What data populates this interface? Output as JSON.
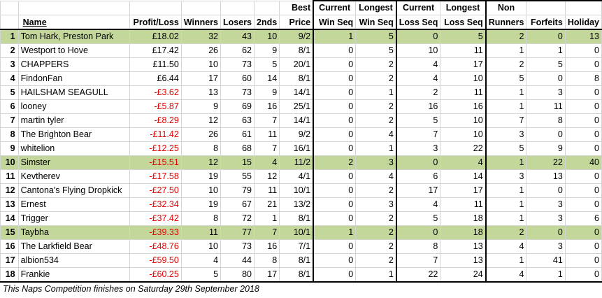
{
  "headers": {
    "name": "Name",
    "profit_loss": "Profit/Loss",
    "winners": "Winners",
    "losers": "Losers",
    "seconds": "2nds",
    "best_price": [
      "Best",
      "Price"
    ],
    "current_win_seq": [
      "Current",
      "Win Seq"
    ],
    "longest_win_seq": [
      "Longest",
      "Win Seq"
    ],
    "current_loss_seq": [
      "Current",
      "Loss Seq"
    ],
    "longest_loss_seq": [
      "Longest",
      "Loss Seq"
    ],
    "non_runners": [
      "Non",
      "Runners"
    ],
    "forfeits": "Forfeits",
    "holiday": "Holiday"
  },
  "rows": [
    {
      "pos": "1",
      "name": "Tom Hark, Preston Park",
      "pl": "£18.02",
      "neg": false,
      "winners": "32",
      "losers": "43",
      "seconds": "10",
      "best": "9/2",
      "cws": "1",
      "lws": "5",
      "cls": "0",
      "lls": "5",
      "nr": "2",
      "forfeits": "0",
      "holiday": "13",
      "highlight": true
    },
    {
      "pos": "2",
      "name": "Westport to Hove",
      "pl": "£17.42",
      "neg": false,
      "winners": "26",
      "losers": "62",
      "seconds": "9",
      "best": "8/1",
      "cws": "0",
      "lws": "5",
      "cls": "10",
      "lls": "11",
      "nr": "1",
      "forfeits": "1",
      "holiday": "0",
      "highlight": false
    },
    {
      "pos": "3",
      "name": "CHAPPERS",
      "pl": "£11.50",
      "neg": false,
      "winners": "10",
      "losers": "73",
      "seconds": "5",
      "best": "20/1",
      "cws": "0",
      "lws": "2",
      "cls": "4",
      "lls": "17",
      "nr": "2",
      "forfeits": "5",
      "holiday": "0",
      "highlight": false
    },
    {
      "pos": "4",
      "name": "FindonFan",
      "pl": "£6.44",
      "neg": false,
      "winners": "17",
      "losers": "60",
      "seconds": "14",
      "best": "8/1",
      "cws": "0",
      "lws": "2",
      "cls": "4",
      "lls": "10",
      "nr": "5",
      "forfeits": "0",
      "holiday": "8",
      "highlight": false
    },
    {
      "pos": "5",
      "name": "HAILSHAM SEAGULL",
      "pl": "-£3.62",
      "neg": true,
      "winners": "13",
      "losers": "73",
      "seconds": "9",
      "best": "14/1",
      "cws": "0",
      "lws": "1",
      "cls": "2",
      "lls": "11",
      "nr": "1",
      "forfeits": "3",
      "holiday": "0",
      "highlight": false
    },
    {
      "pos": "6",
      "name": "looney",
      "pl": "-£5.87",
      "neg": true,
      "winners": "9",
      "losers": "69",
      "seconds": "16",
      "best": "25/1",
      "cws": "0",
      "lws": "2",
      "cls": "16",
      "lls": "16",
      "nr": "1",
      "forfeits": "11",
      "holiday": "0",
      "highlight": false
    },
    {
      "pos": "7",
      "name": "martin tyler",
      "pl": "-£8.29",
      "neg": true,
      "winners": "12",
      "losers": "63",
      "seconds": "7",
      "best": "14/1",
      "cws": "0",
      "lws": "2",
      "cls": "5",
      "lls": "10",
      "nr": "7",
      "forfeits": "8",
      "holiday": "0",
      "highlight": false
    },
    {
      "pos": "8",
      "name": "The Brighton Bear",
      "pl": "-£11.42",
      "neg": true,
      "winners": "26",
      "losers": "61",
      "seconds": "11",
      "best": "9/2",
      "cws": "0",
      "lws": "4",
      "cls": "7",
      "lls": "10",
      "nr": "3",
      "forfeits": "0",
      "holiday": "0",
      "highlight": false
    },
    {
      "pos": "9",
      "name": "whitelion",
      "pl": "-£12.25",
      "neg": true,
      "winners": "8",
      "losers": "68",
      "seconds": "7",
      "best": "16/1",
      "cws": "0",
      "lws": "1",
      "cls": "3",
      "lls": "22",
      "nr": "5",
      "forfeits": "9",
      "holiday": "0",
      "highlight": false
    },
    {
      "pos": "10",
      "name": "Simster",
      "pl": "-£15.51",
      "neg": true,
      "winners": "12",
      "losers": "15",
      "seconds": "4",
      "best": "11/2",
      "cws": "2",
      "lws": "3",
      "cls": "0",
      "lls": "4",
      "nr": "1",
      "forfeits": "22",
      "holiday": "40",
      "highlight": true
    },
    {
      "pos": "11",
      "name": "Kevtherev",
      "pl": "-£17.58",
      "neg": true,
      "winners": "19",
      "losers": "55",
      "seconds": "12",
      "best": "4/1",
      "cws": "0",
      "lws": "4",
      "cls": "6",
      "lls": "14",
      "nr": "3",
      "forfeits": "13",
      "holiday": "0",
      "highlight": false
    },
    {
      "pos": "12",
      "name": "Cantona's Flying Dropkick",
      "pl": "-£27.50",
      "neg": true,
      "winners": "10",
      "losers": "79",
      "seconds": "11",
      "best": "10/1",
      "cws": "0",
      "lws": "2",
      "cls": "17",
      "lls": "17",
      "nr": "1",
      "forfeits": "0",
      "holiday": "0",
      "highlight": false
    },
    {
      "pos": "13",
      "name": "Ernest",
      "pl": "-£32.34",
      "neg": true,
      "winners": "19",
      "losers": "67",
      "seconds": "21",
      "best": "13/2",
      "cws": "0",
      "lws": "3",
      "cls": "4",
      "lls": "11",
      "nr": "1",
      "forfeits": "3",
      "holiday": "0",
      "highlight": false
    },
    {
      "pos": "14",
      "name": "Trigger",
      "pl": "-£37.42",
      "neg": true,
      "winners": "8",
      "losers": "72",
      "seconds": "1",
      "best": "8/1",
      "cws": "0",
      "lws": "2",
      "cls": "5",
      "lls": "18",
      "nr": "1",
      "forfeits": "3",
      "holiday": "6",
      "highlight": false
    },
    {
      "pos": "15",
      "name": "Taybha",
      "pl": "-£39.33",
      "neg": true,
      "winners": "11",
      "losers": "77",
      "seconds": "7",
      "best": "10/1",
      "cws": "1",
      "lws": "2",
      "cls": "0",
      "lls": "18",
      "nr": "2",
      "forfeits": "0",
      "holiday": "0",
      "highlight": true
    },
    {
      "pos": "16",
      "name": "The Larkfield Bear",
      "pl": "-£48.76",
      "neg": true,
      "winners": "10",
      "losers": "73",
      "seconds": "16",
      "best": "7/1",
      "cws": "0",
      "lws": "2",
      "cls": "8",
      "lls": "13",
      "nr": "4",
      "forfeits": "3",
      "holiday": "0",
      "highlight": false
    },
    {
      "pos": "17",
      "name": "albion534",
      "pl": "-£59.50",
      "neg": true,
      "winners": "4",
      "losers": "44",
      "seconds": "8",
      "best": "8/1",
      "cws": "0",
      "lws": "2",
      "cls": "7",
      "lls": "13",
      "nr": "1",
      "forfeits": "41",
      "holiday": "0",
      "highlight": false
    },
    {
      "pos": "18",
      "name": "Frankie",
      "pl": "-£60.25",
      "neg": true,
      "winners": "5",
      "losers": "80",
      "seconds": "17",
      "best": "8/1",
      "cws": "0",
      "lws": "1",
      "cls": "22",
      "lls": "24",
      "nr": "4",
      "forfeits": "1",
      "holiday": "0",
      "highlight": false
    }
  ],
  "footer": "This Naps Competition finishes on Saturday 29th September 2018",
  "colors": {
    "highlight": "#c4d79b",
    "negative": "#e00000"
  }
}
